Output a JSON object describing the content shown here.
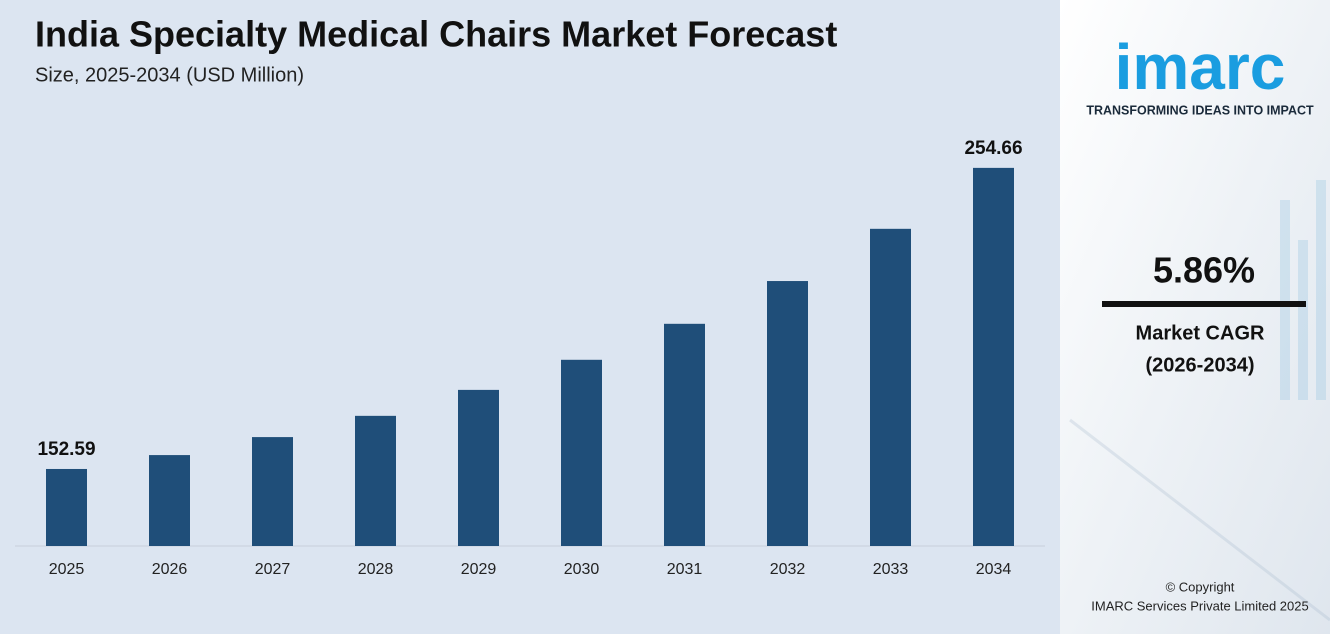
{
  "chart_data": {
    "type": "bar",
    "title": "India Specialty Medical Chairs Market Forecast",
    "subtitle": "Size, 2025-2034 (USD Million)",
    "categories": [
      "2025",
      "2026",
      "2027",
      "2028",
      "2029",
      "2030",
      "2031",
      "2032",
      "2033",
      "2034"
    ],
    "values": [
      152.59,
      157.3,
      163.4,
      170.6,
      179.4,
      189.6,
      201.8,
      216.3,
      234.0,
      254.66
    ],
    "color": "#1f4e79",
    "ylim": [
      126.48,
      267.5
    ]
  },
  "sidebar": {
    "logo": "imarc",
    "tagline": "TRANSFORMING IDEAS INTO IMPACT",
    "cagr": "5.86%",
    "cagr_label": "Market CAGR",
    "cagr_period": "(2026-2034)",
    "copyright": "© Copyright",
    "company": "IMARC Services Private Limited 2025"
  }
}
